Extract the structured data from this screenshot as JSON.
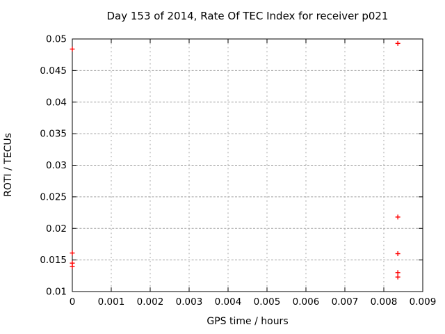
{
  "title": "Day 153 of 2014, Rate Of TEC Index for receiver p021",
  "colors": {
    "background": "#ffffff",
    "axis": "#000000",
    "grid": "#a0a0a0",
    "marker": "#ff0000"
  },
  "chart_data": {
    "type": "scatter",
    "title": "Day 153 of 2014, Rate Of TEC Index for receiver p021",
    "xlabel": "GPS time / hours",
    "ylabel": "ROTI / TECUs",
    "xlim": [
      0,
      0.009
    ],
    "ylim": [
      0.01,
      0.05
    ],
    "xticks": [
      0,
      0.001,
      0.002,
      0.003,
      0.004,
      0.005,
      0.006,
      0.007,
      0.008,
      0.009
    ],
    "xtick_labels": [
      "0",
      "0.001",
      "0.002",
      "0.003",
      "0.004",
      "0.005",
      "0.006",
      "0.007",
      "0.008",
      "0.009"
    ],
    "yticks": [
      0.01,
      0.015,
      0.02,
      0.025,
      0.03,
      0.035,
      0.04,
      0.045,
      0.05
    ],
    "ytick_labels": [
      "0.01",
      "0.015",
      "0.02",
      "0.025",
      "0.03",
      "0.035",
      "0.04",
      "0.045",
      "0.05"
    ],
    "grid": true,
    "legend": "none",
    "marker": "plus",
    "marker_color": "#ff0000",
    "series": [
      {
        "name": "ROTI",
        "points": [
          [
            0,
            0.0484
          ],
          [
            0,
            0.0161
          ],
          [
            0,
            0.0145
          ],
          [
            0,
            0.014
          ],
          [
            0.00836,
            0.0493
          ],
          [
            0.00836,
            0.0218
          ],
          [
            0.00836,
            0.016
          ],
          [
            0.00836,
            0.013
          ],
          [
            0.00836,
            0.0123
          ]
        ]
      }
    ]
  }
}
